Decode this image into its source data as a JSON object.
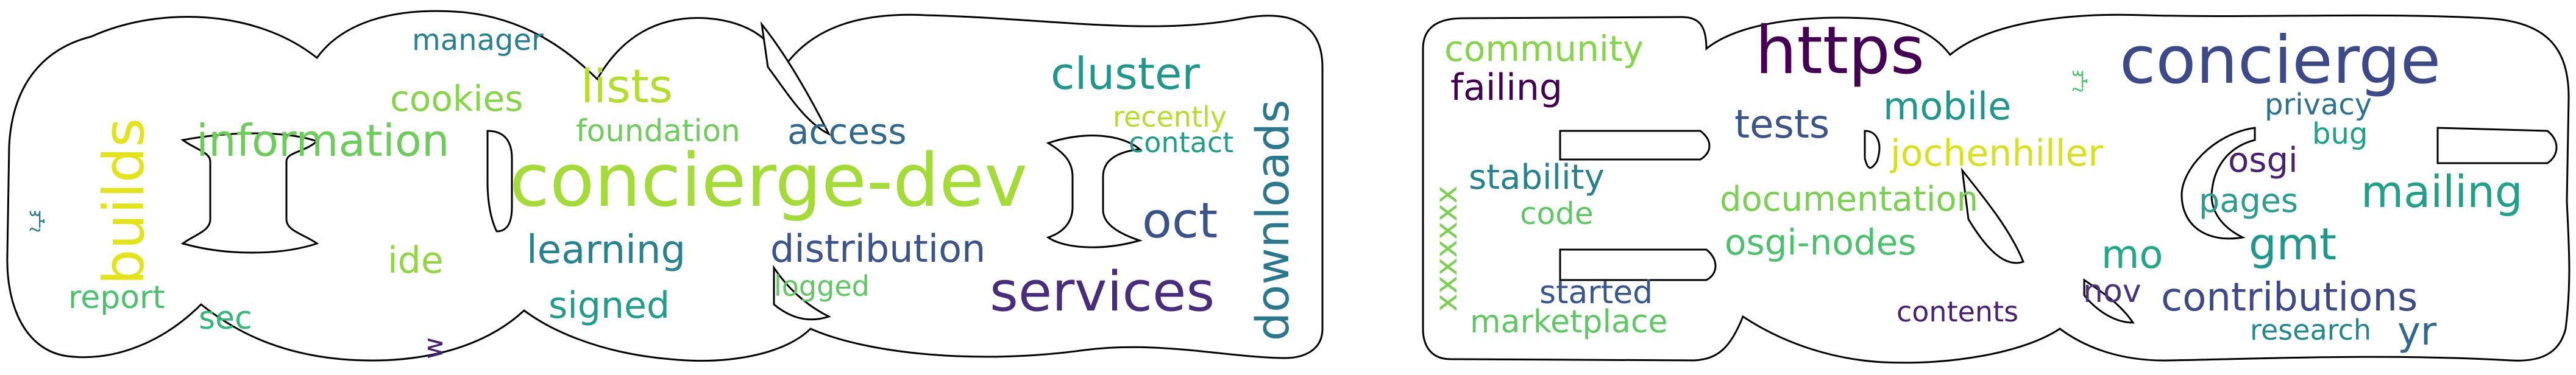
{
  "clouds": [
    {
      "id": "left",
      "words": [
        {
          "text": "concierge-dev",
          "color": "#a5db36"
        },
        {
          "text": "builds",
          "color": "#e2e418"
        },
        {
          "text": "information",
          "color": "#6ccd5a"
        },
        {
          "text": "lists",
          "color": "#b5de2b"
        },
        {
          "text": "cookies",
          "color": "#86d549"
        },
        {
          "text": "manager",
          "color": "#26828e"
        },
        {
          "text": "foundation",
          "color": "#6ccd5a"
        },
        {
          "text": "access",
          "color": "#31688e"
        },
        {
          "text": "cluster",
          "color": "#1f988b"
        },
        {
          "text": "recently",
          "color": "#b5de2b"
        },
        {
          "text": "contact",
          "color": "#1f9e89"
        },
        {
          "text": "downloads",
          "color": "#2a788e"
        },
        {
          "text": "oct",
          "color": "#3b528b"
        },
        {
          "text": "services",
          "color": "#472d7b"
        },
        {
          "text": "distribution",
          "color": "#3b528b"
        },
        {
          "text": "learning",
          "color": "#26828e"
        },
        {
          "text": "signed",
          "color": "#1f9e89"
        },
        {
          "text": "logged",
          "color": "#5ec962"
        },
        {
          "text": "ide",
          "color": "#90d743"
        },
        {
          "text": "report",
          "color": "#4ac16d"
        },
        {
          "text": "sec",
          "color": "#35b779"
        },
        {
          "text": "w",
          "color": "#482173"
        },
        {
          "text": "ꔓ",
          "color": "#2a788e"
        }
      ]
    },
    {
      "id": "right",
      "words": [
        {
          "text": "community",
          "color": "#86d549"
        },
        {
          "text": "failing",
          "color": "#440154"
        },
        {
          "text": "https",
          "color": "#440154"
        },
        {
          "text": "concierge",
          "color": "#3e4989"
        },
        {
          "text": "privacy",
          "color": "#2c728e"
        },
        {
          "text": "bug",
          "color": "#1fa187"
        },
        {
          "text": "osgi",
          "color": "#482173"
        },
        {
          "text": "tests",
          "color": "#3b528b"
        },
        {
          "text": "mobile",
          "color": "#1f988b"
        },
        {
          "text": "jochenhiller",
          "color": "#d8e219"
        },
        {
          "text": "stability",
          "color": "#26828e"
        },
        {
          "text": "code",
          "color": "#5ec962"
        },
        {
          "text": "documentation",
          "color": "#7ad151"
        },
        {
          "text": "osgi-nodes",
          "color": "#4ac16d"
        },
        {
          "text": "pages",
          "color": "#2a9d8f"
        },
        {
          "text": "mailing",
          "color": "#1fa187"
        },
        {
          "text": "gmt",
          "color": "#1f988b"
        },
        {
          "text": "mo",
          "color": "#22a884"
        },
        {
          "text": "nov",
          "color": "#46327e"
        },
        {
          "text": "contributions",
          "color": "#3e4989"
        },
        {
          "text": "research",
          "color": "#23888e"
        },
        {
          "text": "yr",
          "color": "#31688e"
        },
        {
          "text": "contents",
          "color": "#482173"
        },
        {
          "text": "started",
          "color": "#39568c"
        },
        {
          "text": "marketplace",
          "color": "#5ec962"
        },
        {
          "text": "xxxxxxx",
          "color": "#7ad151"
        },
        {
          "text": "ꔓ",
          "color": "#4ac16d"
        }
      ]
    }
  ]
}
